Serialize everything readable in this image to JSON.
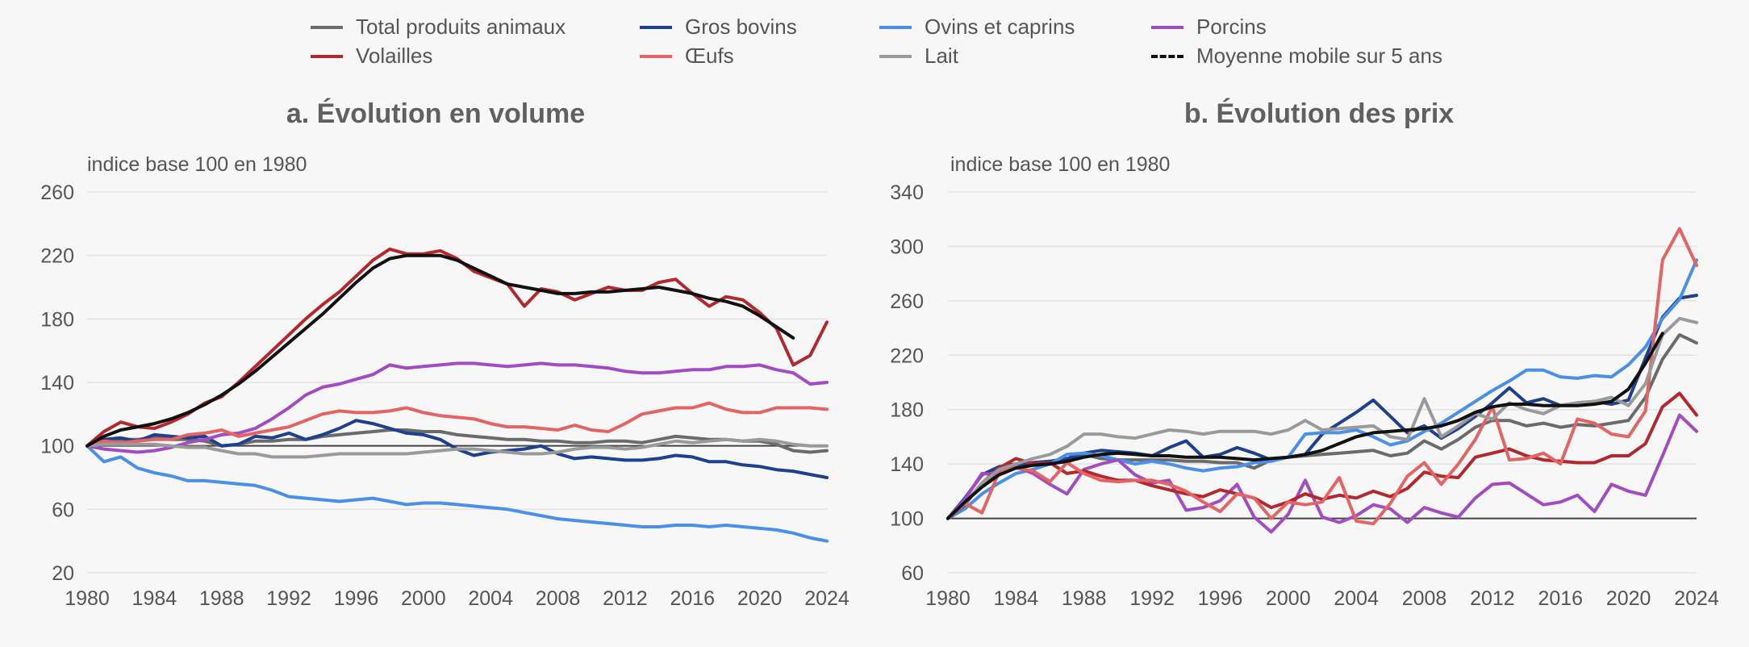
{
  "legend": {
    "items": [
      {
        "label": "Total produits animaux",
        "color": "#6b6b6b",
        "dash": false
      },
      {
        "label": "Gros bovins",
        "color": "#1f3f8f",
        "dash": false
      },
      {
        "label": "Ovins et caprins",
        "color": "#4a90e8",
        "dash": false
      },
      {
        "label": "Porcins",
        "color": "#a24cc2",
        "dash": false
      },
      {
        "label": "Volailles",
        "color": "#b3282d",
        "dash": false
      },
      {
        "label": "Œufs",
        "color": "#e46464",
        "dash": false
      },
      {
        "label": "Lait",
        "color": "#9a9a9a",
        "dash": false
      },
      {
        "label": "Moyenne mobile sur 5 ans",
        "color": "#111111",
        "dash": true
      }
    ]
  },
  "chart_data": [
    {
      "type": "line",
      "title": "a. Évolution en volume",
      "ylabel": "indice base 100 en 1980",
      "xlim": [
        1980,
        2024
      ],
      "ylim": [
        20,
        260
      ],
      "yticks": [
        20,
        60,
        100,
        140,
        180,
        220,
        260
      ],
      "xticks": [
        1980,
        1984,
        1988,
        1992,
        1996,
        2000,
        2004,
        2008,
        2012,
        2016,
        2020,
        2024
      ],
      "reference_line": 100,
      "grid": true,
      "x": [
        1980,
        1981,
        1982,
        1983,
        1984,
        1985,
        1986,
        1987,
        1988,
        1989,
        1990,
        1991,
        1992,
        1993,
        1994,
        1995,
        1996,
        1997,
        1998,
        1999,
        2000,
        2001,
        2002,
        2003,
        2004,
        2005,
        2006,
        2007,
        2008,
        2009,
        2010,
        2011,
        2012,
        2013,
        2014,
        2015,
        2016,
        2017,
        2018,
        2019,
        2020,
        2021,
        2022,
        2023,
        2024
      ],
      "series": [
        {
          "name": "Total produits animaux",
          "color": "#6b6b6b",
          "values": [
            100,
            103,
            104,
            104,
            105,
            104,
            104,
            103,
            100,
            101,
            103,
            103,
            104,
            104,
            106,
            107,
            108,
            109,
            110,
            110,
            109,
            109,
            107,
            106,
            105,
            104,
            104,
            103,
            103,
            102,
            102,
            103,
            103,
            102,
            104,
            106,
            105,
            104,
            104,
            103,
            103,
            101,
            97,
            96,
            97
          ]
        },
        {
          "name": "Gros bovins",
          "color": "#1f3f8f",
          "values": [
            100,
            104,
            105,
            103,
            107,
            106,
            105,
            106,
            100,
            101,
            106,
            105,
            108,
            104,
            107,
            111,
            116,
            114,
            111,
            108,
            107,
            104,
            98,
            94,
            96,
            97,
            98,
            100,
            95,
            92,
            93,
            92,
            91,
            91,
            92,
            94,
            93,
            90,
            90,
            88,
            87,
            85,
            84,
            82,
            80
          ]
        },
        {
          "name": "Ovins et caprins",
          "color": "#4a90e8",
          "values": [
            100,
            90,
            93,
            86,
            83,
            81,
            78,
            78,
            77,
            76,
            75,
            72,
            68,
            67,
            66,
            65,
            66,
            67,
            65,
            63,
            64,
            64,
            63,
            62,
            61,
            60,
            58,
            56,
            54,
            53,
            52,
            51,
            50,
            49,
            49,
            50,
            50,
            49,
            50,
            49,
            48,
            47,
            45,
            42,
            40
          ]
        },
        {
          "name": "Porcins",
          "color": "#a24cc2",
          "values": [
            100,
            98,
            97,
            96,
            97,
            99,
            102,
            104,
            107,
            108,
            111,
            117,
            124,
            132,
            137,
            139,
            142,
            145,
            151,
            149,
            150,
            151,
            152,
            152,
            151,
            150,
            151,
            152,
            151,
            151,
            150,
            149,
            147,
            146,
            146,
            147,
            148,
            148,
            150,
            150,
            151,
            148,
            146,
            139,
            140
          ]
        },
        {
          "name": "Volailles",
          "color": "#b3282d",
          "values": [
            100,
            109,
            115,
            112,
            111,
            115,
            120,
            127,
            131,
            140,
            150,
            160,
            170,
            180,
            189,
            197,
            207,
            217,
            224,
            221,
            221,
            223,
            218,
            210,
            206,
            202,
            188,
            199,
            197,
            192,
            196,
            200,
            198,
            198,
            203,
            205,
            196,
            188,
            194,
            192,
            184,
            174,
            151,
            157,
            178
          ]
        },
        {
          "name": "Œufs",
          "color": "#e46464",
          "values": [
            100,
            103,
            102,
            103,
            104,
            104,
            107,
            108,
            110,
            106,
            108,
            110,
            112,
            116,
            120,
            122,
            121,
            121,
            122,
            124,
            121,
            119,
            118,
            117,
            114,
            112,
            112,
            111,
            110,
            113,
            110,
            109,
            114,
            120,
            122,
            124,
            124,
            127,
            123,
            121,
            121,
            124,
            124,
            124,
            123
          ]
        },
        {
          "name": "Lait",
          "color": "#9a9a9a",
          "values": [
            100,
            101,
            101,
            101,
            101,
            100,
            99,
            99,
            97,
            95,
            95,
            93,
            93,
            93,
            94,
            95,
            95,
            95,
            95,
            95,
            96,
            97,
            98,
            98,
            97,
            96,
            95,
            95,
            96,
            98,
            99,
            99,
            98,
            99,
            101,
            103,
            102,
            103,
            104,
            103,
            104,
            103,
            101,
            100,
            100
          ]
        },
        {
          "name": "Moyenne mobile sur 5 ans",
          "dash": true,
          "color": "#111111",
          "values": [
            100,
            106,
            110,
            112,
            114,
            117,
            121,
            126,
            132,
            139,
            147,
            156,
            165,
            174,
            183,
            193,
            203,
            212,
            218,
            220,
            220,
            220,
            217,
            212,
            207,
            202,
            200,
            198,
            196,
            196,
            197,
            197,
            198,
            199,
            200,
            198,
            196,
            193,
            191,
            188,
            182,
            175,
            168,
            null,
            null
          ]
        }
      ]
    },
    {
      "type": "line",
      "title": "b. Évolution des prix",
      "ylabel": "indice base 100 en 1980",
      "xlim": [
        1980,
        2024
      ],
      "ylim": [
        60,
        340
      ],
      "yticks": [
        60,
        100,
        140,
        180,
        220,
        260,
        300,
        340
      ],
      "xticks": [
        1980,
        1984,
        1988,
        1992,
        1996,
        2000,
        2004,
        2008,
        2012,
        2016,
        2020,
        2024
      ],
      "reference_line": 100,
      "grid": true,
      "x": [
        1980,
        1981,
        1982,
        1983,
        1984,
        1985,
        1986,
        1987,
        1988,
        1989,
        1990,
        1991,
        1992,
        1993,
        1994,
        1995,
        1996,
        1997,
        1998,
        1999,
        2000,
        2001,
        2002,
        2003,
        2004,
        2005,
        2006,
        2007,
        2008,
        2009,
        2010,
        2011,
        2012,
        2013,
        2014,
        2015,
        2016,
        2017,
        2018,
        2019,
        2020,
        2021,
        2022,
        2023,
        2024
      ],
      "series": [
        {
          "name": "Total produits animaux",
          "color": "#6b6b6b",
          "values": [
            100,
            112,
            125,
            133,
            138,
            141,
            142,
            141,
            147,
            144,
            143,
            143,
            143,
            143,
            142,
            142,
            141,
            141,
            137,
            143,
            145,
            146,
            147,
            148,
            149,
            150,
            146,
            148,
            157,
            151,
            158,
            167,
            172,
            172,
            168,
            170,
            167,
            169,
            168,
            170,
            172,
            189,
            217,
            235,
            229
          ]
        },
        {
          "name": "Gros bovins",
          "color": "#1f3f8f",
          "values": [
            100,
            115,
            132,
            138,
            140,
            141,
            142,
            144,
            148,
            150,
            149,
            148,
            146,
            152,
            157,
            145,
            147,
            152,
            148,
            143,
            145,
            147,
            162,
            170,
            178,
            187,
            175,
            163,
            168,
            159,
            166,
            175,
            185,
            196,
            185,
            188,
            183,
            185,
            186,
            184,
            187,
            218,
            248,
            262,
            264
          ]
        },
        {
          "name": "Ovins et caprins",
          "color": "#4a90e8",
          "values": [
            100,
            107,
            118,
            126,
            133,
            136,
            140,
            147,
            148,
            146,
            143,
            140,
            142,
            140,
            137,
            135,
            137,
            138,
            141,
            142,
            145,
            162,
            163,
            163,
            165,
            160,
            154,
            157,
            164,
            170,
            178,
            186,
            194,
            201,
            209,
            209,
            204,
            203,
            205,
            204,
            213,
            226,
            247,
            261,
            290
          ]
        },
        {
          "name": "Porcins",
          "color": "#a24cc2",
          "values": [
            100,
            114,
            133,
            132,
            138,
            133,
            125,
            118,
            136,
            140,
            143,
            132,
            126,
            128,
            106,
            108,
            113,
            125,
            101,
            90,
            103,
            128,
            101,
            97,
            102,
            110,
            107,
            97,
            108,
            104,
            101,
            115,
            125,
            126,
            118,
            110,
            112,
            117,
            105,
            125,
            120,
            117,
            146,
            176,
            164
          ]
        },
        {
          "name": "Volailles",
          "color": "#b3282d",
          "values": [
            100,
            110,
            126,
            137,
            144,
            140,
            141,
            133,
            135,
            131,
            128,
            128,
            124,
            121,
            118,
            116,
            121,
            118,
            115,
            108,
            112,
            118,
            114,
            117,
            115,
            120,
            116,
            122,
            134,
            131,
            130,
            145,
            148,
            151,
            146,
            143,
            142,
            141,
            141,
            146,
            146,
            155,
            182,
            192,
            176
          ]
        },
        {
          "name": "Œufs",
          "color": "#e46464",
          "values": [
            100,
            111,
            104,
            134,
            137,
            135,
            127,
            141,
            133,
            128,
            127,
            128,
            128,
            125,
            120,
            112,
            105,
            118,
            115,
            100,
            112,
            110,
            112,
            130,
            98,
            96,
            111,
            131,
            141,
            125,
            140,
            158,
            182,
            143,
            144,
            148,
            140,
            173,
            170,
            162,
            160,
            179,
            290,
            313,
            286
          ]
        },
        {
          "name": "Lait",
          "color": "#9a9a9a",
          "values": [
            100,
            111,
            126,
            136,
            140,
            144,
            147,
            153,
            162,
            162,
            160,
            159,
            162,
            165,
            164,
            162,
            164,
            164,
            164,
            162,
            165,
            172,
            165,
            166,
            167,
            168,
            160,
            158,
            188,
            160,
            168,
            177,
            173,
            185,
            180,
            177,
            183,
            185,
            186,
            189,
            183,
            199,
            235,
            247,
            244
          ]
        },
        {
          "name": "Moyenne mobile sur 5 ans",
          "dash": true,
          "color": "#111111",
          "values": [
            100,
            112,
            123,
            132,
            137,
            139,
            140,
            142,
            145,
            147,
            148,
            147,
            146,
            146,
            145,
            145,
            145,
            144,
            143,
            144,
            145,
            147,
            150,
            155,
            160,
            163,
            164,
            165,
            166,
            168,
            172,
            178,
            182,
            184,
            184,
            183,
            183,
            183,
            184,
            186,
            195,
            214,
            236,
            null,
            null
          ]
        }
      ]
    }
  ]
}
